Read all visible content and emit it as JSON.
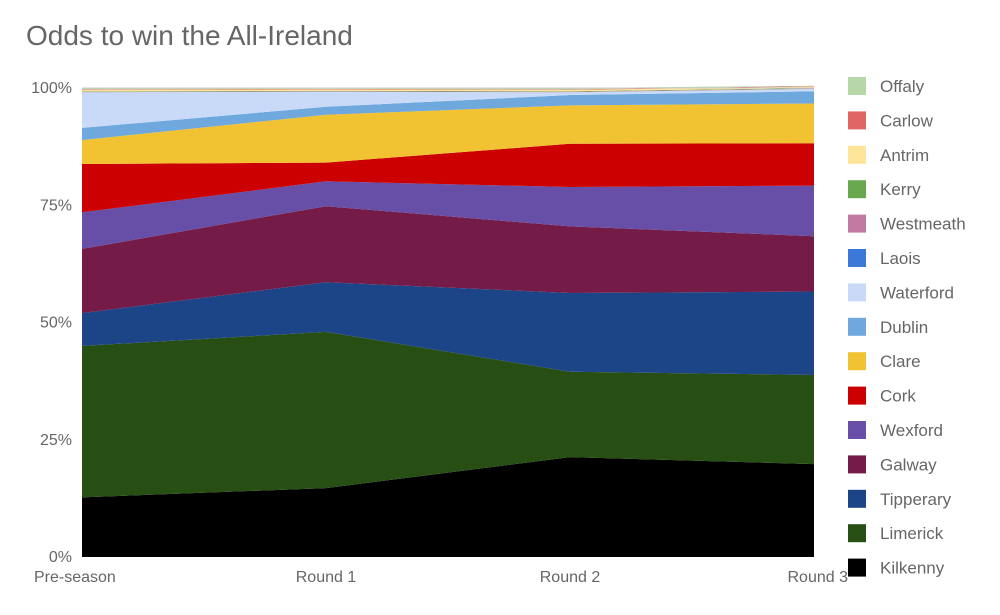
{
  "chart_data": {
    "type": "area",
    "stacked": true,
    "title": "Odds to win the All-Ireland",
    "xlabel": "",
    "ylabel": "",
    "ylim": [
      0,
      100
    ],
    "yticks": [
      "0%",
      "25%",
      "50%",
      "75%",
      "100%"
    ],
    "categories": [
      "Pre-season",
      "Round 1",
      "Round 2",
      "Round 3"
    ],
    "legend_position": "right",
    "series": [
      {
        "name": "Kilkenny",
        "color": "#000000",
        "values": [
          12.7,
          14.7,
          21.3,
          19.8
        ]
      },
      {
        "name": "Limerick",
        "color": "#274e13",
        "values": [
          32.3,
          33.3,
          18.2,
          19.0
        ]
      },
      {
        "name": "Tipperary",
        "color": "#1c4587",
        "values": [
          7.0,
          10.6,
          16.8,
          17.8
        ]
      },
      {
        "name": "Galway",
        "color": "#741b47",
        "values": [
          13.7,
          16.2,
          14.2,
          11.8
        ]
      },
      {
        "name": "Wexford",
        "color": "#674ea7",
        "values": [
          7.8,
          5.3,
          8.4,
          10.8
        ]
      },
      {
        "name": "Cork",
        "color": "#cc0000",
        "values": [
          10.3,
          4.0,
          9.2,
          9.0
        ]
      },
      {
        "name": "Clare",
        "color": "#f1c232",
        "values": [
          5.1,
          10.2,
          8.2,
          8.5
        ]
      },
      {
        "name": "Dublin",
        "color": "#6fa8dc",
        "values": [
          2.6,
          1.7,
          2.2,
          2.6
        ]
      },
      {
        "name": "Waterford",
        "color": "#c9daf8",
        "values": [
          7.6,
          3.2,
          0.6,
          0.5
        ]
      },
      {
        "name": "Laois",
        "color": "#3c78d8",
        "values": [
          0.0,
          0.0,
          0.0,
          0.0
        ]
      },
      {
        "name": "Westmeath",
        "color": "#c27ba0",
        "values": [
          0.1,
          0.1,
          0.1,
          0.1
        ]
      },
      {
        "name": "Kerry",
        "color": "#6aa84f",
        "values": [
          0.1,
          0.1,
          0.1,
          0.1
        ]
      },
      {
        "name": "Antrim",
        "color": "#ffe599",
        "values": [
          0.3,
          0.3,
          0.3,
          0.3
        ]
      },
      {
        "name": "Carlow",
        "color": "#e06666",
        "values": [
          0.1,
          0.1,
          0.1,
          0.1
        ]
      },
      {
        "name": "Offaly",
        "color": "#b6d7a8",
        "values": [
          0.3,
          0.3,
          0.3,
          0.1
        ]
      }
    ]
  }
}
